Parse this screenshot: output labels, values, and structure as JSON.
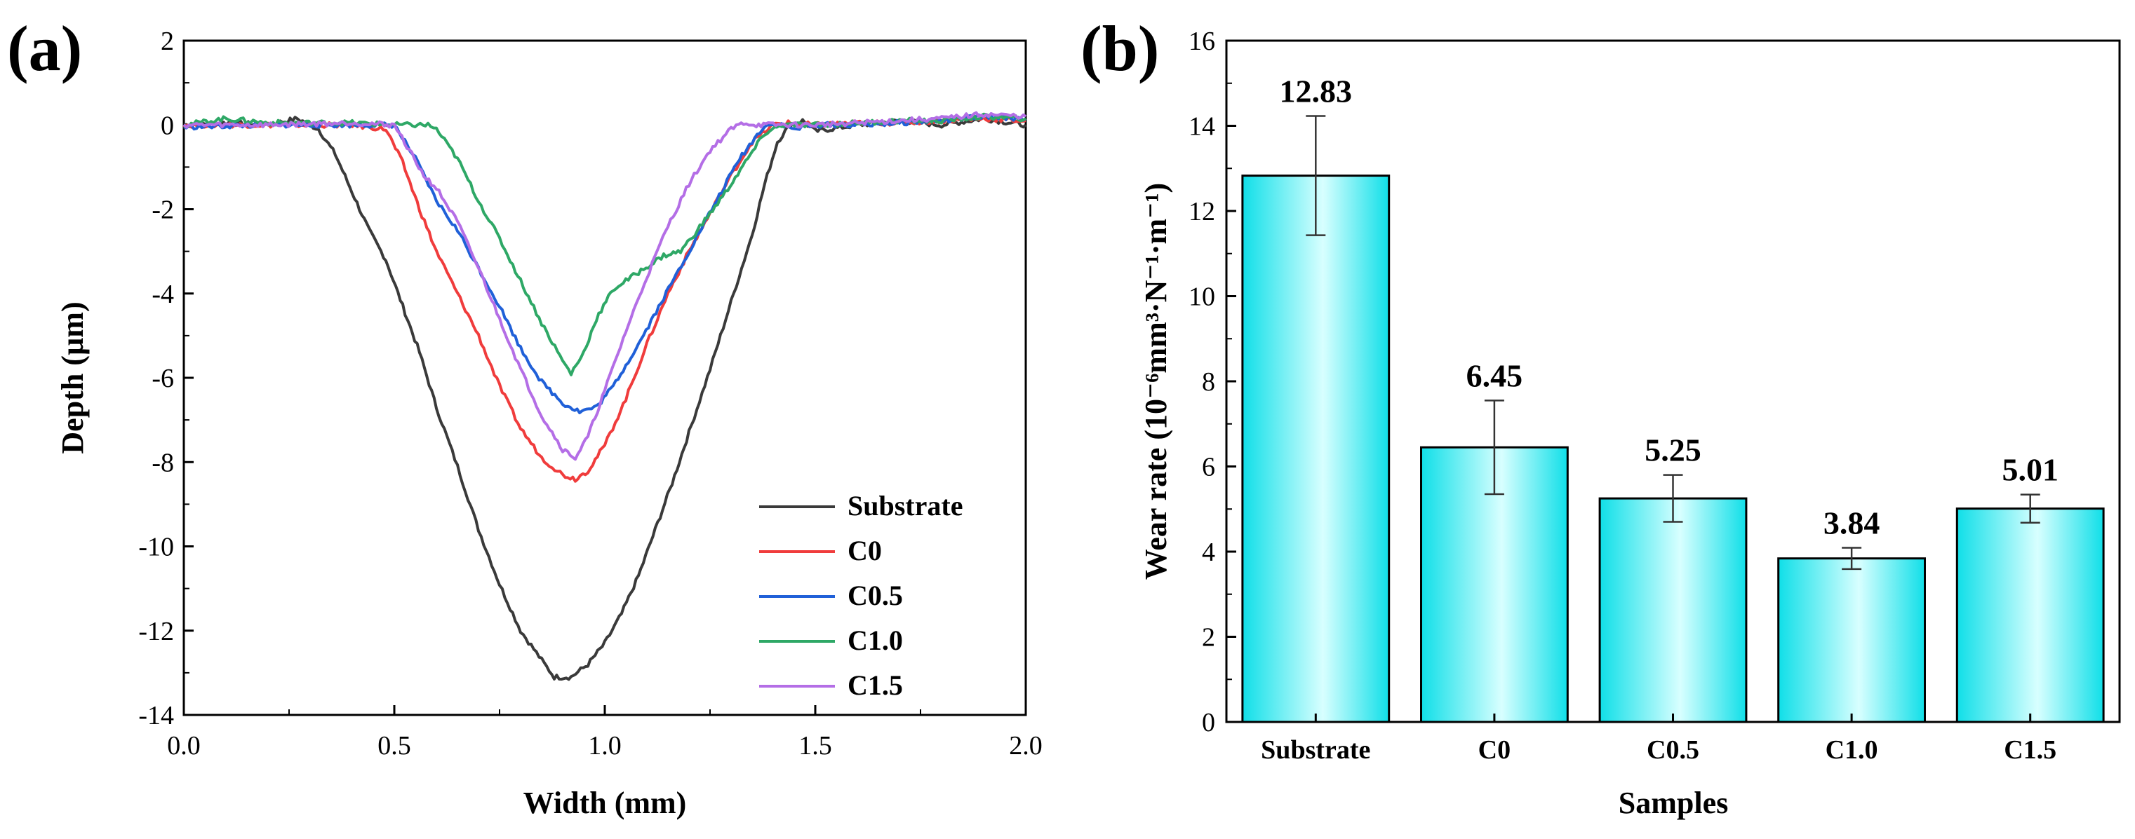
{
  "panels": {
    "a": {
      "label": "(a)"
    },
    "b": {
      "label": "(b)"
    }
  },
  "chart_data": [
    {
      "type": "line",
      "panel": "(a)",
      "title": "",
      "xlabel": "Width (mm)",
      "ylabel": "Depth (µm)",
      "xlim": [
        0.0,
        2.0
      ],
      "ylim": [
        -14,
        2
      ],
      "xticks": [
        "0.0",
        "0.5",
        "1.0",
        "1.5",
        "2.0"
      ],
      "yticks": [
        "2",
        "0",
        "-2",
        "-4",
        "-6",
        "-8",
        "-10",
        "-12",
        "-14"
      ],
      "legend_position": "bottom-right",
      "series": [
        {
          "name": "Substrate",
          "color": "#3a3a3a",
          "x": [
            0.0,
            0.1,
            0.2,
            0.27,
            0.32,
            0.36,
            0.4,
            0.44,
            0.48,
            0.52,
            0.56,
            0.6,
            0.65,
            0.7,
            0.75,
            0.8,
            0.85,
            0.88,
            0.92,
            0.96,
            1.0,
            1.04,
            1.08,
            1.12,
            1.16,
            1.2,
            1.25,
            1.3,
            1.35,
            1.38,
            1.41,
            1.44,
            1.47,
            1.5,
            1.6,
            1.7,
            1.8,
            1.9,
            2.0
          ],
          "y": [
            0.0,
            0.05,
            0.0,
            0.15,
            -0.1,
            -0.7,
            -1.6,
            -2.5,
            -3.2,
            -4.3,
            -5.4,
            -6.7,
            -8.1,
            -9.6,
            -10.9,
            -12.0,
            -12.7,
            -13.1,
            -13.1,
            -12.8,
            -12.3,
            -11.6,
            -10.7,
            -9.6,
            -8.5,
            -7.3,
            -5.8,
            -4.2,
            -2.6,
            -1.4,
            -0.4,
            0.0,
            0.1,
            -0.15,
            0.0,
            0.1,
            0.0,
            0.15,
            0.0
          ]
        },
        {
          "name": "C0",
          "color": "#f03c3c",
          "x": [
            0.0,
            0.2,
            0.4,
            0.48,
            0.52,
            0.56,
            0.6,
            0.65,
            0.7,
            0.75,
            0.8,
            0.85,
            0.9,
            0.93,
            0.96,
            1.0,
            1.05,
            1.1,
            1.15,
            1.2,
            1.25,
            1.3,
            1.35,
            1.4,
            1.43,
            1.5,
            1.6,
            1.7,
            1.8,
            1.9,
            2.0
          ],
          "y": [
            0.0,
            0.0,
            0.0,
            -0.1,
            -0.9,
            -2.0,
            -3.0,
            -4.0,
            -5.0,
            -6.2,
            -7.2,
            -7.9,
            -8.3,
            -8.4,
            -8.2,
            -7.6,
            -6.5,
            -5.2,
            -4.0,
            -3.0,
            -2.1,
            -1.2,
            -0.4,
            0.0,
            0.05,
            0.0,
            0.05,
            0.05,
            0.1,
            0.15,
            0.1
          ]
        },
        {
          "name": "C0.5",
          "color": "#2060d8",
          "x": [
            0.0,
            0.2,
            0.4,
            0.5,
            0.55,
            0.6,
            0.65,
            0.7,
            0.75,
            0.8,
            0.85,
            0.9,
            0.94,
            0.98,
            1.02,
            1.08,
            1.14,
            1.2,
            1.26,
            1.32,
            1.38,
            1.42,
            1.45,
            1.5,
            1.6,
            1.7,
            1.8,
            1.9,
            2.0
          ],
          "y": [
            -0.05,
            0.0,
            0.0,
            0.0,
            -0.8,
            -1.8,
            -2.5,
            -3.4,
            -4.3,
            -5.3,
            -6.1,
            -6.6,
            -6.8,
            -6.7,
            -6.2,
            -5.2,
            -4.1,
            -3.0,
            -1.9,
            -0.8,
            0.0,
            0.0,
            -0.1,
            0.0,
            0.0,
            0.05,
            0.1,
            0.2,
            0.15
          ]
        },
        {
          "name": "C1.0",
          "color": "#2ea866",
          "x": [
            0.0,
            0.1,
            0.2,
            0.4,
            0.5,
            0.58,
            0.6,
            0.65,
            0.7,
            0.75,
            0.8,
            0.85,
            0.9,
            0.92,
            0.95,
            0.98,
            1.02,
            1.08,
            1.14,
            1.18,
            1.22,
            1.28,
            1.34,
            1.38,
            1.42,
            1.5,
            1.6,
            1.7,
            1.8,
            1.9,
            2.0
          ],
          "y": [
            0.0,
            0.15,
            0.05,
            0.05,
            0.0,
            0.0,
            -0.1,
            -0.8,
            -1.8,
            -2.7,
            -3.7,
            -4.7,
            -5.6,
            -5.9,
            -5.4,
            -4.6,
            -3.9,
            -3.5,
            -3.1,
            -3.0,
            -2.5,
            -1.7,
            -0.8,
            -0.2,
            0.0,
            0.0,
            0.05,
            0.1,
            0.1,
            0.2,
            0.15
          ]
        },
        {
          "name": "C1.5",
          "color": "#b46ee6",
          "x": [
            0.0,
            0.2,
            0.4,
            0.5,
            0.53,
            0.57,
            0.6,
            0.65,
            0.7,
            0.75,
            0.8,
            0.85,
            0.9,
            0.93,
            0.96,
            1.0,
            1.05,
            1.1,
            1.15,
            1.2,
            1.25,
            1.3,
            1.33,
            1.36,
            1.4,
            1.5,
            1.6,
            1.7,
            1.8,
            1.9,
            2.0
          ],
          "y": [
            0.0,
            0.0,
            0.05,
            0.0,
            -0.5,
            -1.2,
            -1.5,
            -2.3,
            -3.4,
            -4.6,
            -5.8,
            -6.9,
            -7.7,
            -7.9,
            -7.4,
            -6.3,
            -4.9,
            -3.6,
            -2.4,
            -1.4,
            -0.6,
            -0.1,
            0.05,
            0.0,
            0.0,
            0.0,
            0.05,
            0.1,
            0.15,
            0.25,
            0.2
          ]
        }
      ]
    },
    {
      "type": "bar",
      "panel": "(b)",
      "title": "",
      "xlabel": "Samples",
      "ylabel": "Wear rate (10⁻⁶mm³·N⁻¹·m⁻¹)",
      "ylim": [
        0,
        16
      ],
      "yticks": [
        "0",
        "2",
        "4",
        "6",
        "8",
        "10",
        "12",
        "14",
        "16"
      ],
      "categories": [
        "Substrate",
        "C0",
        "C0.5",
        "C1.0",
        "C1.5"
      ],
      "values": [
        12.83,
        6.45,
        5.25,
        3.84,
        5.01
      ],
      "value_labels": [
        "12.83",
        "6.45",
        "5.25",
        "3.84",
        "5.01"
      ],
      "errors": [
        1.4,
        1.1,
        0.55,
        0.25,
        0.33
      ],
      "bar_color": "#1fe8f0",
      "bar_highlight": "#e8ffff"
    }
  ]
}
